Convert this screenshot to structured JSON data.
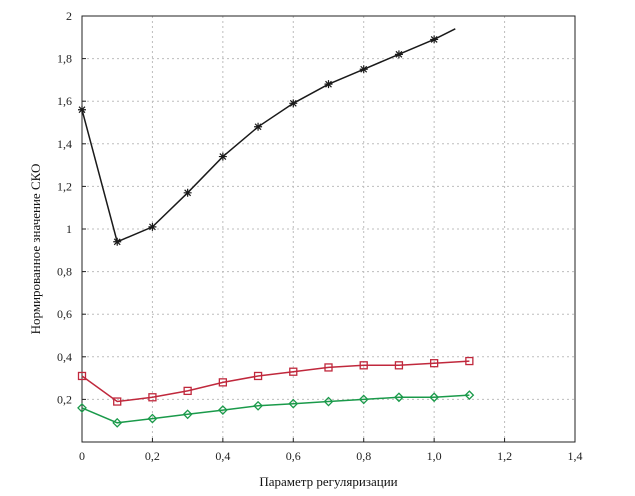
{
  "chart_data": {
    "type": "line",
    "title": "",
    "xlabel": "Параметр регуляризации",
    "ylabel": "Нормированное значение СКО",
    "xlim": [
      0,
      1.4
    ],
    "ylim": [
      0,
      2
    ],
    "grid": true,
    "legend": "none",
    "x_ticks": [
      {
        "value": 0,
        "label": "0"
      },
      {
        "value": 0.2,
        "label": "0,2"
      },
      {
        "value": 0.4,
        "label": "0,4"
      },
      {
        "value": 0.6,
        "label": "0,6"
      },
      {
        "value": 0.8,
        "label": "0,8"
      },
      {
        "value": 1.0,
        "label": "1,0"
      },
      {
        "value": 1.2,
        "label": "1,2"
      },
      {
        "value": 1.4,
        "label": "1,4"
      }
    ],
    "y_ticks": [
      {
        "value": 0.2,
        "label": "0,2"
      },
      {
        "value": 0.4,
        "label": "0,4"
      },
      {
        "value": 0.6,
        "label": "0,6"
      },
      {
        "value": 0.8,
        "label": "0,8"
      },
      {
        "value": 1.0,
        "label": "1"
      },
      {
        "value": 1.2,
        "label": "1,2"
      },
      {
        "value": 1.4,
        "label": "1,4"
      },
      {
        "value": 1.6,
        "label": "1,6"
      },
      {
        "value": 1.8,
        "label": "1,8"
      },
      {
        "value": 2.0,
        "label": "2"
      }
    ],
    "series": [
      {
        "color": "#1a1a1a",
        "marker": "star",
        "x": [
          0,
          0.1,
          0.2,
          0.3,
          0.4,
          0.5,
          0.6,
          0.7,
          0.8,
          0.9,
          1.0,
          1.06
        ],
        "y": [
          1.56,
          0.94,
          1.01,
          1.17,
          1.34,
          1.48,
          1.59,
          1.68,
          1.75,
          1.82,
          1.89,
          1.94
        ],
        "marked_points": 11
      },
      {
        "color": "#c0283c",
        "marker": "square",
        "x": [
          0,
          0.1,
          0.2,
          0.3,
          0.4,
          0.5,
          0.6,
          0.7,
          0.8,
          0.9,
          1.0,
          1.1
        ],
        "y": [
          0.31,
          0.19,
          0.21,
          0.24,
          0.28,
          0.31,
          0.33,
          0.35,
          0.36,
          0.36,
          0.37,
          0.38
        ],
        "marked_points": 12
      },
      {
        "color": "#1a9a4a",
        "marker": "diamond",
        "x": [
          0,
          0.1,
          0.2,
          0.3,
          0.4,
          0.5,
          0.6,
          0.7,
          0.8,
          0.9,
          1.0,
          1.1
        ],
        "y": [
          0.16,
          0.09,
          0.11,
          0.13,
          0.15,
          0.17,
          0.18,
          0.19,
          0.2,
          0.21,
          0.21,
          0.22
        ],
        "marked_points": 12
      }
    ]
  }
}
